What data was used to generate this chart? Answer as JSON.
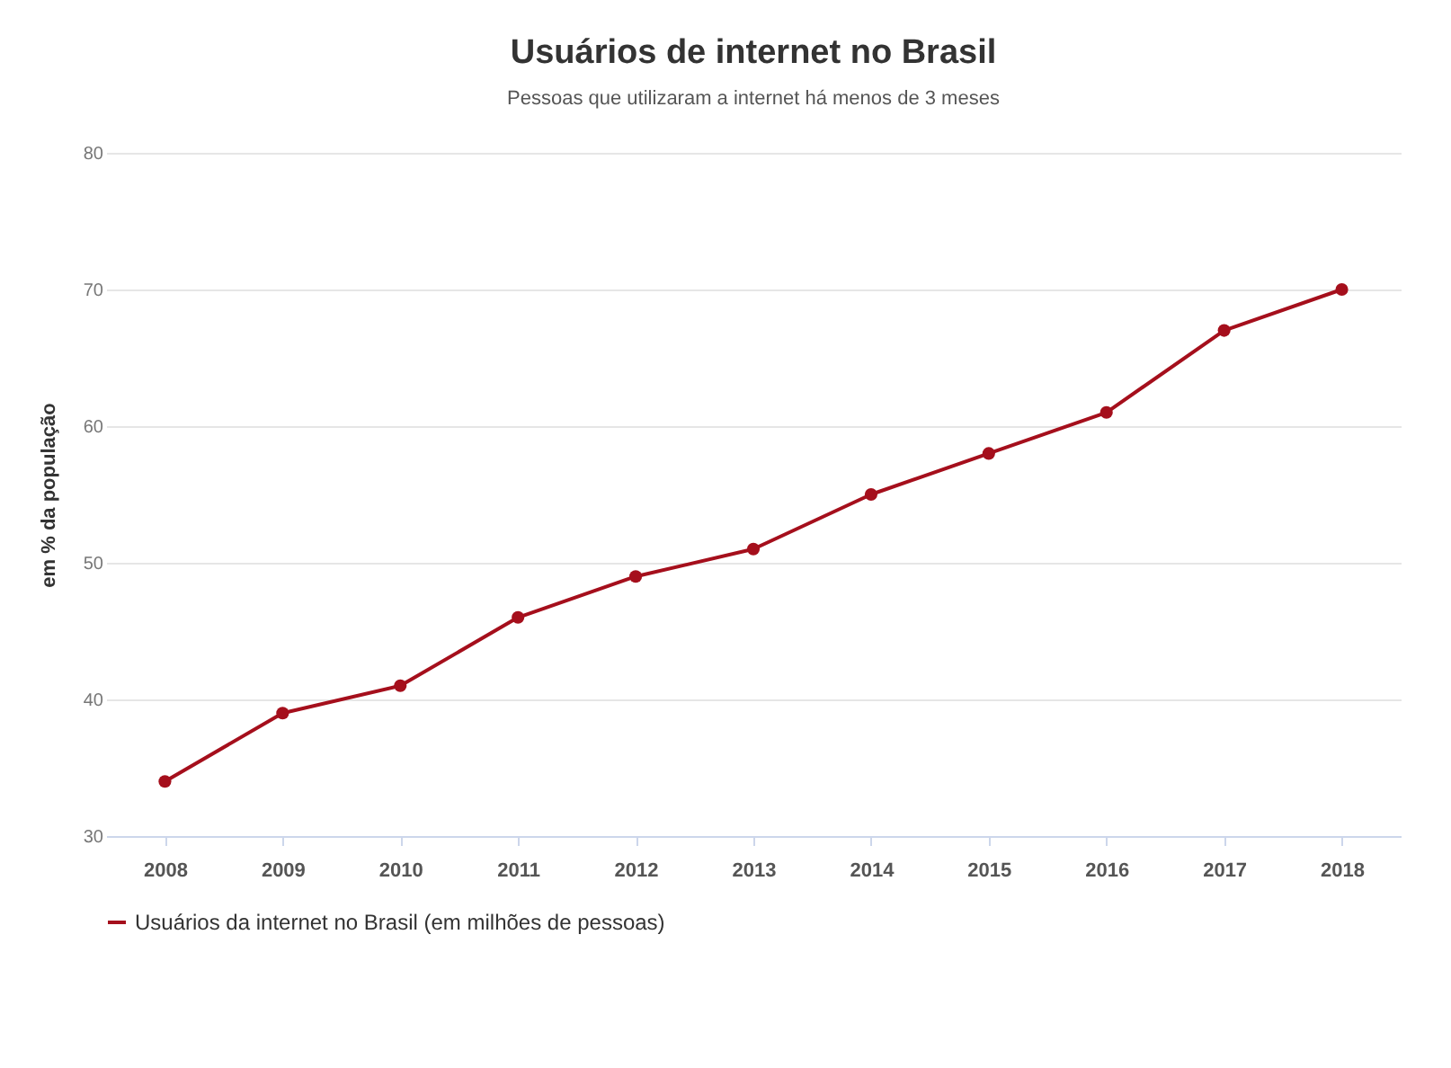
{
  "chart_data": {
    "type": "line",
    "title": "Usuários de internet no Brasil",
    "subtitle": "Pessoas que utilizaram a internet há menos de 3 meses",
    "ylabel": "em % da população",
    "categories": [
      "2008",
      "2009",
      "2010",
      "2011",
      "2012",
      "2013",
      "2014",
      "2015",
      "2016",
      "2017",
      "2018"
    ],
    "series": [
      {
        "name": "Usuários da internet no Brasil (em milhões de pessoas)",
        "color": "#a50f1c",
        "values": [
          34,
          39,
          41,
          46,
          49,
          51,
          55,
          58,
          61,
          67,
          70
        ]
      }
    ],
    "ylim": [
      30,
      80
    ],
    "yticks": [
      30,
      40,
      50,
      60,
      70,
      80
    ],
    "grid": "y",
    "legend": "bottom",
    "marker": "circle",
    "line_style": "solid"
  }
}
